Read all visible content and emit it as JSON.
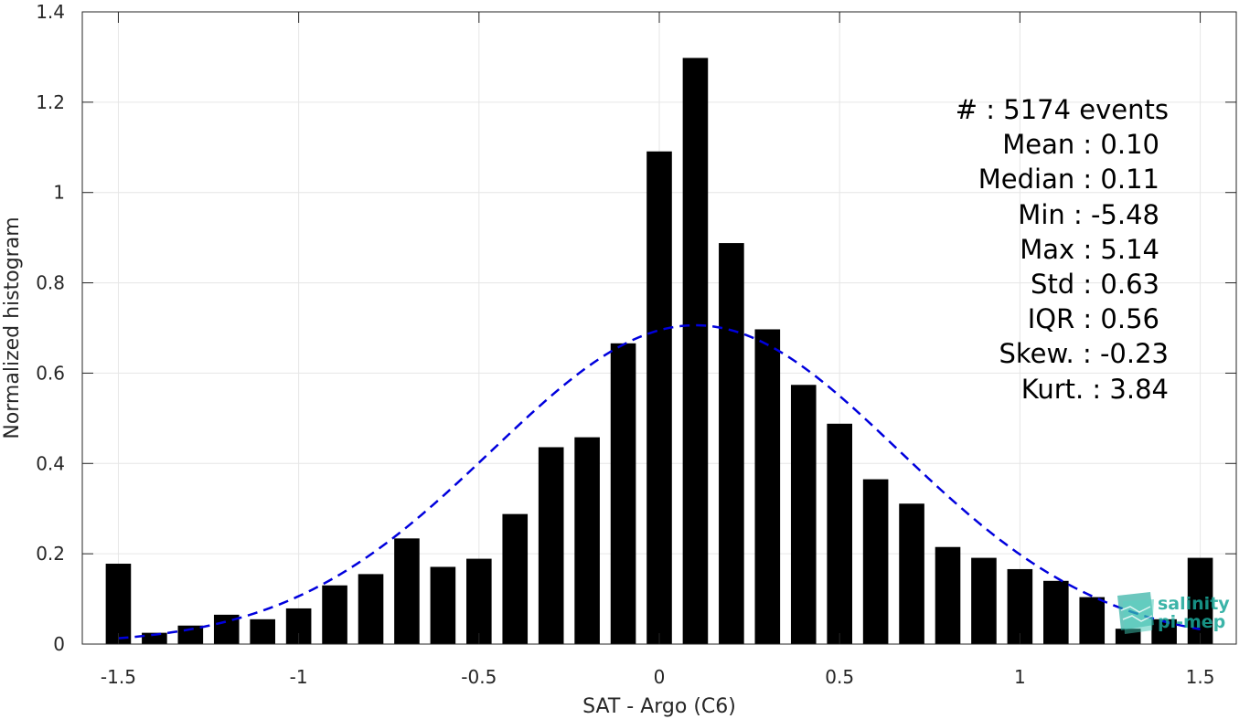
{
  "chart_data": {
    "type": "bar",
    "xlabel": "SAT - Argo (C6)",
    "ylabel": "Normalized histogram",
    "xlim": [
      -1.6,
      1.6
    ],
    "ylim": [
      0,
      1.4
    ],
    "xticks": [
      -1.5,
      -1,
      -0.5,
      0,
      0.5,
      1,
      1.5
    ],
    "xtick_labels": [
      "-1.5",
      "-1",
      "-0.5",
      "0",
      "0.5",
      "1",
      "1.5"
    ],
    "yticks": [
      0,
      0.2,
      0.4,
      0.6,
      0.8,
      1,
      1.2,
      1.4
    ],
    "ytick_labels": [
      "0",
      "0.2",
      "0.4",
      "0.6",
      "0.8",
      "1",
      "1.2",
      "1.4"
    ],
    "grid": true,
    "bar_width": 0.07,
    "bar_color": "#000000",
    "x": [
      -1.5,
      -1.4,
      -1.3,
      -1.2,
      -1.1,
      -1.0,
      -0.9,
      -0.8,
      -0.7,
      -0.6,
      -0.5,
      -0.4,
      -0.3,
      -0.2,
      -0.1,
      0.0,
      0.1,
      0.2,
      0.3,
      0.4,
      0.5,
      0.6,
      0.7,
      0.8,
      0.9,
      1.0,
      1.1,
      1.2,
      1.3,
      1.4,
      1.5
    ],
    "values": [
      0.178,
      0.025,
      0.041,
      0.065,
      0.055,
      0.079,
      0.13,
      0.155,
      0.234,
      0.171,
      0.189,
      0.288,
      0.436,
      0.458,
      0.666,
      1.091,
      1.298,
      0.888,
      0.697,
      0.574,
      0.488,
      0.365,
      0.311,
      0.215,
      0.191,
      0.166,
      0.14,
      0.104,
      0.034,
      0.055,
      0.191
    ],
    "fit_curve": {
      "style": "dashed",
      "color": "#0000dd",
      "mean": 0.1,
      "std": 0.565,
      "peak": 0.706,
      "x_range": [
        -1.5,
        1.5
      ]
    }
  },
  "stats": {
    "count": "#  : 5174 events",
    "mean": "Mean : 0.10",
    "median": "Median : 0.11",
    "min": "Min : -5.48",
    "max": "Max : 5.14",
    "std": "Std : 0.63",
    "iqr": "IQR : 0.56",
    "skew": "Skew. : -0.23",
    "kurt": "Kurt. : 3.84"
  },
  "logo": {
    "line1": "salinity",
    "line2": "pi-mep",
    "icon": "salinity-pimep-logo-icon"
  }
}
